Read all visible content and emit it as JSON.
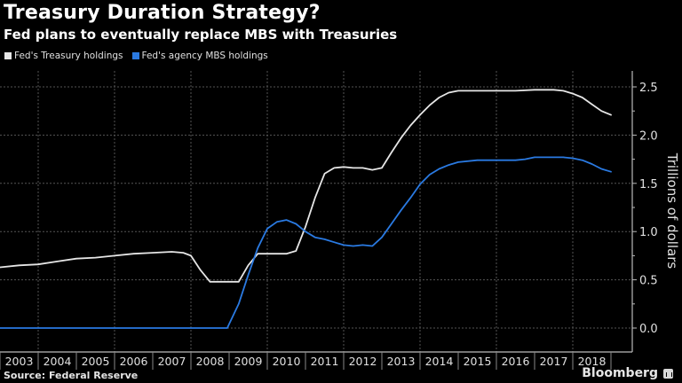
{
  "header": {
    "title": "Treasury Duration Strategy?",
    "subtitle": "Fed plans to eventually replace MBS with Treasuries"
  },
  "footer": {
    "source": "Source: Federal Reserve",
    "brand": "Bloomberg"
  },
  "colors": {
    "background": "#000000",
    "treasury": "#e6e6e6",
    "mbs": "#2a7ae2",
    "grid": "#555555",
    "axis": "#bbbbbb"
  },
  "chart_data": {
    "type": "line",
    "title": "Treasury Duration Strategy?",
    "subtitle": "Fed plans to eventually replace MBS with Treasuries",
    "xlabel": "",
    "ylabel": "Trillions of dollars",
    "xlim": [
      2003,
      2019.1
    ],
    "ylim": [
      -0.25,
      2.6
    ],
    "x_ticks": [
      "2003",
      "2004",
      "2005",
      "2006",
      "2007",
      "2008",
      "2009",
      "2010",
      "2011",
      "2012",
      "2013",
      "2014",
      "2015",
      "2016",
      "2017",
      "2018"
    ],
    "y_ticks": [
      "0.0",
      "0.5",
      "1.0",
      "1.5",
      "2.0",
      "2.5"
    ],
    "y_tick_values": [
      0,
      0.5,
      1.0,
      1.5,
      2.0,
      2.5
    ],
    "grid": true,
    "legend_position": "top-left",
    "y_axis_side": "right",
    "series": [
      {
        "name": "Fed's Treasury holdings",
        "color": "#e6e6e6",
        "points": [
          [
            2003.0,
            0.63
          ],
          [
            2003.5,
            0.65
          ],
          [
            2004.0,
            0.66
          ],
          [
            2004.5,
            0.69
          ],
          [
            2005.0,
            0.72
          ],
          [
            2005.5,
            0.73
          ],
          [
            2006.0,
            0.75
          ],
          [
            2006.5,
            0.77
          ],
          [
            2007.0,
            0.78
          ],
          [
            2007.5,
            0.79
          ],
          [
            2007.8,
            0.78
          ],
          [
            2008.0,
            0.75
          ],
          [
            2008.25,
            0.6
          ],
          [
            2008.5,
            0.48
          ],
          [
            2009.0,
            0.48
          ],
          [
            2009.25,
            0.48
          ],
          [
            2009.5,
            0.65
          ],
          [
            2009.75,
            0.77
          ],
          [
            2010.0,
            0.77
          ],
          [
            2010.25,
            0.77
          ],
          [
            2010.5,
            0.77
          ],
          [
            2010.75,
            0.8
          ],
          [
            2011.0,
            1.05
          ],
          [
            2011.25,
            1.35
          ],
          [
            2011.5,
            1.6
          ],
          [
            2011.75,
            1.66
          ],
          [
            2012.0,
            1.67
          ],
          [
            2012.25,
            1.66
          ],
          [
            2012.5,
            1.66
          ],
          [
            2012.75,
            1.64
          ],
          [
            2013.0,
            1.66
          ],
          [
            2013.25,
            1.82
          ],
          [
            2013.5,
            1.97
          ],
          [
            2013.75,
            2.1
          ],
          [
            2014.0,
            2.21
          ],
          [
            2014.25,
            2.31
          ],
          [
            2014.5,
            2.39
          ],
          [
            2014.75,
            2.44
          ],
          [
            2015.0,
            2.46
          ],
          [
            2015.5,
            2.46
          ],
          [
            2016.0,
            2.46
          ],
          [
            2016.5,
            2.46
          ],
          [
            2017.0,
            2.47
          ],
          [
            2017.5,
            2.47
          ],
          [
            2017.75,
            2.46
          ],
          [
            2018.0,
            2.43
          ],
          [
            2018.25,
            2.39
          ],
          [
            2018.5,
            2.32
          ],
          [
            2018.75,
            2.25
          ],
          [
            2019.0,
            2.21
          ]
        ]
      },
      {
        "name": "Fed's agency MBS holdings",
        "color": "#2a7ae2",
        "points": [
          [
            2003.0,
            0.0
          ],
          [
            2004.0,
            0.0
          ],
          [
            2005.0,
            0.0
          ],
          [
            2006.0,
            0.0
          ],
          [
            2007.0,
            0.0
          ],
          [
            2008.0,
            0.0
          ],
          [
            2008.95,
            0.0
          ],
          [
            2009.25,
            0.25
          ],
          [
            2009.5,
            0.55
          ],
          [
            2009.75,
            0.83
          ],
          [
            2010.0,
            1.03
          ],
          [
            2010.25,
            1.1
          ],
          [
            2010.5,
            1.12
          ],
          [
            2010.75,
            1.08
          ],
          [
            2011.0,
            1.0
          ],
          [
            2011.25,
            0.94
          ],
          [
            2011.5,
            0.92
          ],
          [
            2011.75,
            0.89
          ],
          [
            2012.0,
            0.86
          ],
          [
            2012.25,
            0.85
          ],
          [
            2012.5,
            0.86
          ],
          [
            2012.75,
            0.85
          ],
          [
            2013.0,
            0.94
          ],
          [
            2013.25,
            1.08
          ],
          [
            2013.5,
            1.22
          ],
          [
            2013.75,
            1.35
          ],
          [
            2014.0,
            1.49
          ],
          [
            2014.25,
            1.59
          ],
          [
            2014.5,
            1.65
          ],
          [
            2014.75,
            1.69
          ],
          [
            2015.0,
            1.72
          ],
          [
            2015.5,
            1.74
          ],
          [
            2016.0,
            1.74
          ],
          [
            2016.5,
            1.74
          ],
          [
            2016.75,
            1.75
          ],
          [
            2017.0,
            1.77
          ],
          [
            2017.5,
            1.77
          ],
          [
            2017.75,
            1.77
          ],
          [
            2018.0,
            1.76
          ],
          [
            2018.25,
            1.74
          ],
          [
            2018.5,
            1.7
          ],
          [
            2018.75,
            1.65
          ],
          [
            2019.0,
            1.62
          ]
        ]
      }
    ]
  }
}
